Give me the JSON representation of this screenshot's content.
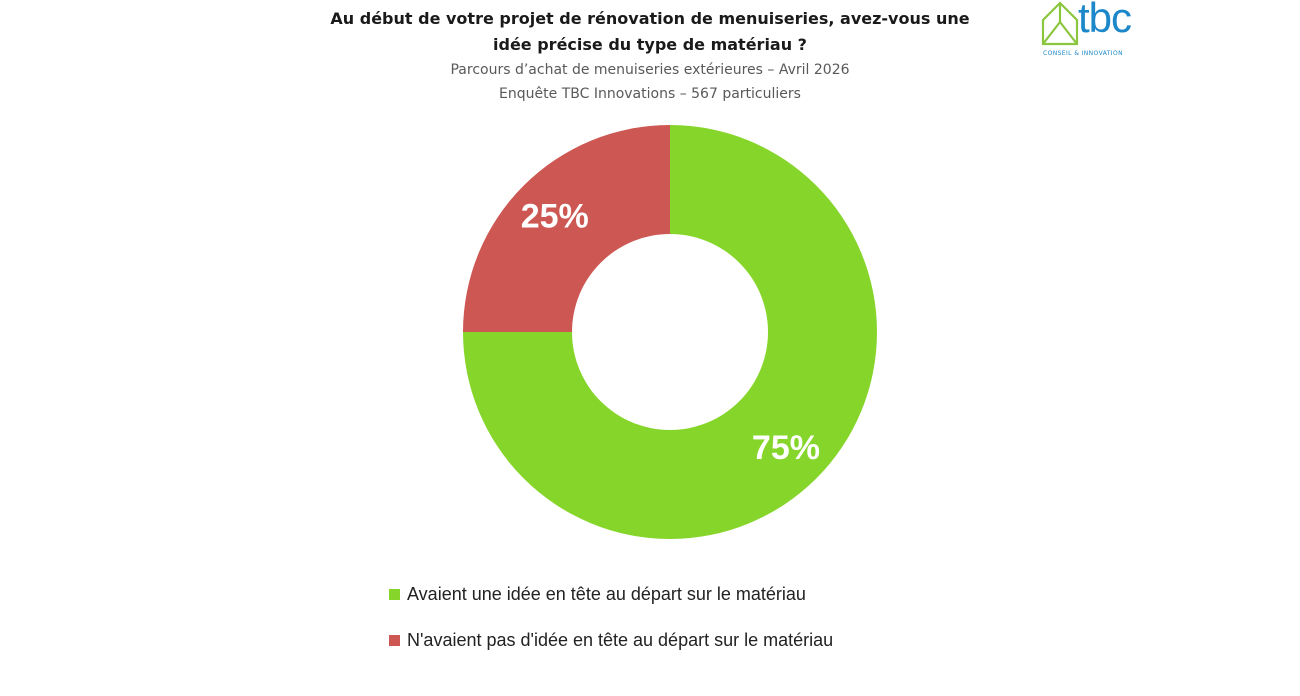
{
  "header": {
    "title_line1": "Au début de votre projet de rénovation de menuiseries, avez-vous une",
    "title_line2": "idée précise du type de matériau ?",
    "subtitle_line1": "Parcours d’achat de menuiseries extérieures – Avril 2026",
    "subtitle_line2": "Enquête TBC Innovations – 567 particuliers"
  },
  "logo": {
    "icon": "house-outline-icon",
    "text": "tbc",
    "tagline": "CONSEIL & INNOVATION",
    "colors": {
      "icon": "#8cc63f",
      "text": "#1c87c9"
    }
  },
  "chart_data": {
    "type": "pie",
    "variant": "donut",
    "title": "Au début de votre projet de rénovation de menuiseries, avez-vous une idée précise du type de matériau ?",
    "categories": [
      "Avaient une idée en tête au départ sur le matériau",
      "N'avaient pas d'idée en tête au départ sur le matériau"
    ],
    "values": [
      75,
      25
    ],
    "labels": [
      "75%",
      "25%"
    ],
    "colors": [
      "#86d52b",
      "#cd5752"
    ],
    "legend_position": "bottom"
  }
}
